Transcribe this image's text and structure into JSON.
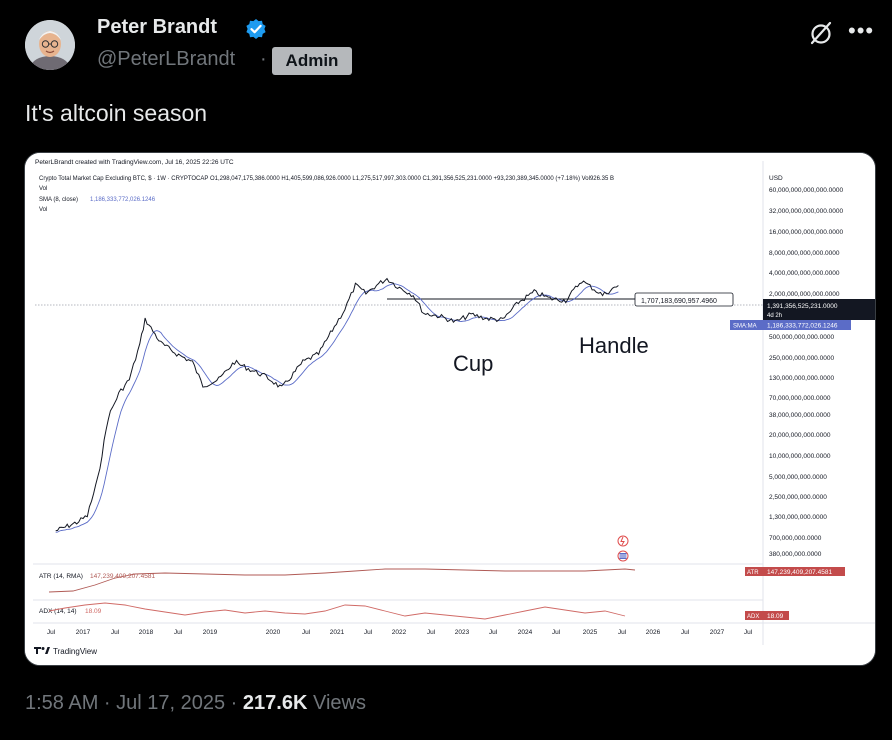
{
  "author": {
    "name": "Peter Brandt",
    "handle": "@PeterLBrandt",
    "separator": "·",
    "badge": "Admin",
    "verified_color": "#1d9bf0"
  },
  "tweet": {
    "text": "It's altcoin season"
  },
  "chart": {
    "header_credit": "PeterLBrandt created with TradingView.com, Jul 16, 2025 22:26 UTC",
    "symbol_line": "Crypto Total Market Cap Excluding BTC, $ · 1W · CRYPTOCAP  O1,298,047,175,386.0000  H1,405,599,086,926.0000  L1,275,517,997,303.0000  C1,391,356,525,231.0000  +93,230,389,345.0000 (+7.18%)  Vol926.35 B",
    "vol_label": "Vol",
    "sma_label": "SMA (8, close)",
    "sma_value": "1,186,333,772,026.1246",
    "vol_label2": "Vol",
    "currency": "USD",
    "price_callout": "1,707,183,690,957.4960",
    "annotation_cup": "Cup",
    "annotation_handle": "Handle",
    "current_price": "1,391,356,525,231.0000",
    "current_sub": "4d 2h",
    "sma_tag": "SMA:MA",
    "sma_tag_value": "1,186,333,772,026.1246",
    "atr_label": "ATR (14, RMA)",
    "atr_value": "147,239,409,207.4581",
    "atr_tag": "ATR",
    "adx_label": "ADX (14, 14)",
    "adx_value": "18.09",
    "adx_tag": "ADX",
    "logo_text": "TradingView",
    "colors": {
      "price": "#131722",
      "sma": "#5b6cc7",
      "atr": "#b05a55",
      "adx": "#d06a66",
      "sma_tag": "#5b6cc7",
      "tag_red": "#c34b4b"
    }
  },
  "chart_data": {
    "type": "line",
    "title": "Crypto Total Market Cap Excluding BTC, $ · 1W · CRYPTOCAP",
    "ylabel": "USD",
    "yscale": "log",
    "y_ticks": [
      "60,000,000,000,000.0000",
      "32,000,000,000,000.0000",
      "16,000,000,000,000.0000",
      "8,000,000,000,000.0000",
      "4,000,000,000,000.0000",
      "2,000,000,000,000.0000",
      "500,000,000,000.0000",
      "250,000,000,000.0000",
      "130,000,000,000.0000",
      "70,000,000,000.0000",
      "38,000,000,000.0000",
      "20,000,000,000.0000",
      "10,000,000,000.0000",
      "5,000,000,000.0000",
      "2,500,000,000.0000",
      "1,300,000,000.0000",
      "700,000,000.0000",
      "380,000,000.0000"
    ],
    "x_ticks": [
      "Jul",
      "2017",
      "Jul",
      "2018",
      "Jul",
      "2019",
      "2020",
      "Jul",
      "2021",
      "Jul",
      "2022",
      "Jul",
      "2023",
      "Jul",
      "2024",
      "Jul",
      "2025",
      "Jul",
      "2026",
      "Jul",
      "2027",
      "Jul"
    ],
    "series": [
      {
        "name": "Crypto Total Market Cap Excluding BTC",
        "x": [
          "2016-08",
          "2016-12",
          "2017-02",
          "2017-04",
          "2017-06",
          "2017-08",
          "2017-10",
          "2017-12",
          "2018-01",
          "2018-04",
          "2018-07",
          "2018-10",
          "2018-12",
          "2019-03",
          "2019-06",
          "2019-09",
          "2019-12",
          "2020-03",
          "2020-07",
          "2020-10",
          "2021-01",
          "2021-03",
          "2021-05",
          "2021-07",
          "2021-09",
          "2021-11",
          "2022-01",
          "2022-04",
          "2022-06",
          "2022-09",
          "2022-12",
          "2023-03",
          "2023-06",
          "2023-09",
          "2023-12",
          "2024-03",
          "2024-06",
          "2024-09",
          "2024-12",
          "2025-02",
          "2025-04",
          "2025-07"
        ],
        "y": [
          1100000000.0,
          1400000000.0,
          1700000000.0,
          5000000000.0,
          30000000000.0,
          60000000000.0,
          90000000000.0,
          250000000000.0,
          520000000000.0,
          260000000000.0,
          190000000000.0,
          150000000000.0,
          75000000000.0,
          90000000000.0,
          150000000000.0,
          120000000000.0,
          98000000000.0,
          70000000000.0,
          150000000000.0,
          190000000000.0,
          420000000000.0,
          700000000000.0,
          1400000000000.0,
          1100000000000.0,
          1400000000000.0,
          1700000000000.0,
          1350000000000.0,
          1050000000000.0,
          620000000000.0,
          570000000000.0,
          480000000000.0,
          600000000000.0,
          530000000000.0,
          510000000000.0,
          850000000000.0,
          1150000000000.0,
          950000000000.0,
          900000000000.0,
          1600000000000.0,
          1300000000000.0,
          1050000000000.0,
          1390000000000.0
        ]
      },
      {
        "name": "SMA (8, close)",
        "x": [
          "2025-07"
        ],
        "y": [
          1186000000000.0
        ]
      },
      {
        "name": "ATR (14, RMA)",
        "x": [
          "2025-07"
        ],
        "y": [
          147240000000.0
        ]
      },
      {
        "name": "ADX (14, 14)",
        "x": [
          "2025-07"
        ],
        "y": [
          18.09
        ]
      }
    ]
  },
  "footer": {
    "time": "1:58 AM · Jul 17, 2025 · ",
    "views_count": "217.6K",
    "views_label": " Views"
  }
}
